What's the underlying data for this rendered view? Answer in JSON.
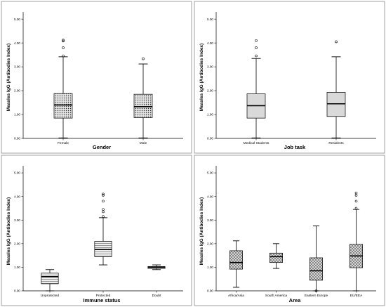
{
  "chart_data": [
    {
      "type": "box",
      "xlabel": "Gender",
      "ylabel": "Measles IgG (Antibodies Index)",
      "ylim": [
        0,
        5.3
      ],
      "yticks": [
        0,
        1,
        2,
        3,
        4,
        5
      ],
      "ytick_labels": [
        "0.00",
        "1.00",
        "2.00",
        "3.00",
        "4.00",
        "5.00"
      ],
      "pattern": "dots",
      "categories": [
        "Female",
        "Male"
      ],
      "boxes": [
        {
          "category": "Female",
          "min": 0.02,
          "q1": 0.85,
          "median": 1.4,
          "q3": 1.88,
          "max": 3.42,
          "outliers": [
            3.46,
            3.8,
            4.08,
            4.12
          ]
        },
        {
          "category": "Male",
          "min": 0.02,
          "q1": 0.87,
          "median": 1.33,
          "q3": 1.85,
          "max": 3.12,
          "outliers": [
            3.34
          ]
        }
      ]
    },
    {
      "type": "box",
      "xlabel": "Job task",
      "ylabel": "Measles IgG (Antibodies Index)",
      "ylim": [
        0,
        5.3
      ],
      "yticks": [
        0,
        1,
        2,
        3,
        4,
        5
      ],
      "ytick_labels": [
        "0.00",
        "1.00",
        "2.00",
        "3.00",
        "4.00",
        "5.00"
      ],
      "pattern": "none",
      "categories": [
        "Medical Students",
        "Residents"
      ],
      "boxes": [
        {
          "category": "Medical Students",
          "min": 0.02,
          "q1": 0.85,
          "median": 1.37,
          "q3": 1.87,
          "max": 3.35,
          "outliers": [
            3.46,
            3.8,
            4.1
          ]
        },
        {
          "category": "Residents",
          "min": 0.02,
          "q1": 0.92,
          "median": 1.45,
          "q3": 1.93,
          "max": 3.42,
          "outliers": [
            4.05
          ]
        }
      ]
    },
    {
      "type": "box",
      "xlabel": "Immune status",
      "ylabel": "Measles IgG (Antibodies Index)",
      "ylim": [
        0,
        5.3
      ],
      "yticks": [
        0,
        1,
        2,
        3,
        4,
        5
      ],
      "ytick_labels": [
        "0.00",
        "1.00",
        "2.00",
        "3.00",
        "4.00",
        "5.00"
      ],
      "pattern": "hlines",
      "categories": [
        "Unprotected",
        "Protected",
        "Doubt"
      ],
      "boxes": [
        {
          "category": "Unprotected",
          "min": 0.0,
          "q1": 0.3,
          "median": 0.6,
          "q3": 0.75,
          "max": 0.9,
          "outliers": []
        },
        {
          "category": "Protected",
          "min": 1.1,
          "q1": 1.45,
          "median": 1.75,
          "q3": 2.1,
          "max": 3.1,
          "outliers": [
            3.15,
            3.35,
            3.45,
            3.8,
            4.05,
            4.1
          ]
        },
        {
          "category": "Doubt",
          "min": 0.9,
          "q1": 0.95,
          "median": 1.0,
          "q3": 1.03,
          "max": 1.1,
          "outliers": []
        }
      ]
    },
    {
      "type": "box",
      "xlabel": "Area",
      "ylabel": "Measles IgG (Antibodies Index)",
      "ylim": [
        0,
        5.3
      ],
      "yticks": [
        0,
        1,
        2,
        3,
        4,
        5
      ],
      "ytick_labels": [
        "0.00",
        "1.00",
        "2.00",
        "3.00",
        "4.00",
        "5.00"
      ],
      "pattern": "crosshatch",
      "categories": [
        "Africa/Asia",
        "South America",
        "Eastern Europe",
        "EU/EEA"
      ],
      "boxes": [
        {
          "category": "Africa/Asia",
          "min": 0.15,
          "q1": 0.92,
          "median": 1.2,
          "q3": 1.7,
          "max": 2.12,
          "outliers": []
        },
        {
          "category": "South America",
          "min": 0.95,
          "q1": 1.2,
          "median": 1.45,
          "q3": 1.6,
          "max": 2.0,
          "outliers": []
        },
        {
          "category": "Eastern Europe",
          "min": 0.0,
          "q1": 0.45,
          "median": 0.85,
          "q3": 1.4,
          "max": 2.75,
          "outliers": [
            0.0
          ]
        },
        {
          "category": "EU/EEA",
          "min": 0.0,
          "q1": 0.98,
          "median": 1.48,
          "q3": 1.97,
          "max": 3.45,
          "outliers": [
            3.5,
            3.8,
            4.05,
            4.15
          ]
        }
      ]
    }
  ],
  "colors": {
    "box_fill": "#d9d9d9",
    "line": "#000000",
    "frame": "#8a8a8a",
    "text": "#000000"
  }
}
